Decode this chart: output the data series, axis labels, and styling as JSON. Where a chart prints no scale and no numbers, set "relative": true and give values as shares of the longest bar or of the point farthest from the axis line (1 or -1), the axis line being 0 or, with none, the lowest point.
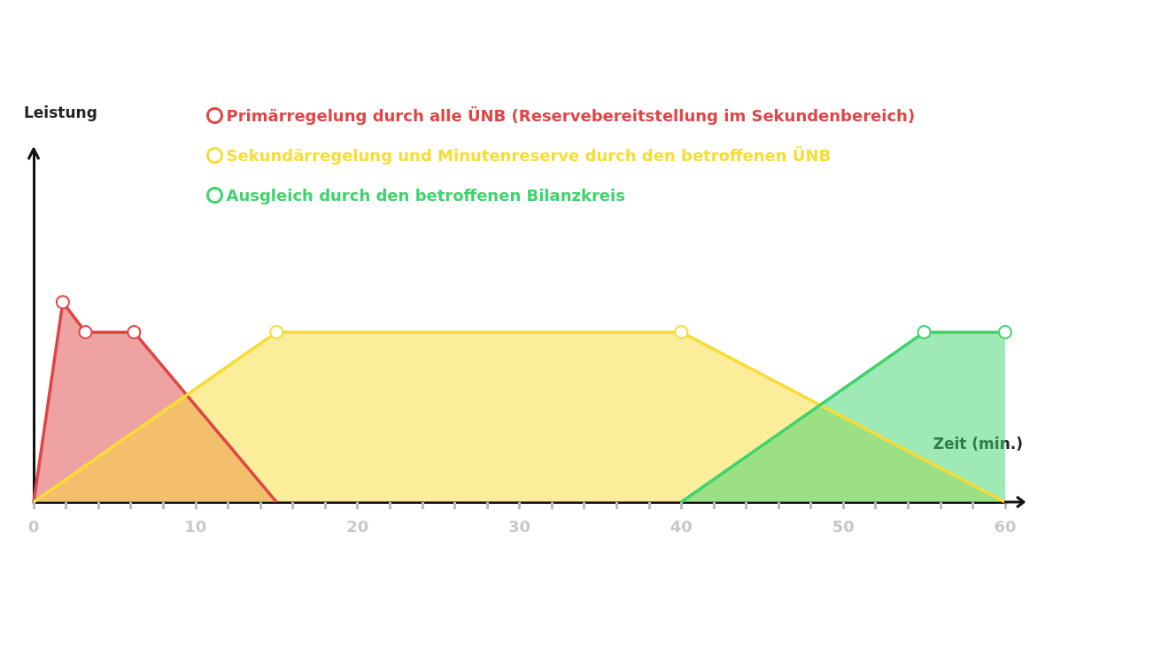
{
  "chart_data": {
    "type": "area",
    "relative": true,
    "xlabel": "Zeit (min.)",
    "annotations": [
      "Leistung"
    ],
    "xlim": [
      0,
      60
    ],
    "xticks": [
      0,
      10,
      20,
      30,
      40,
      50,
      60
    ],
    "legend": "top",
    "marker": "circle",
    "grid": false,
    "series": [
      {
        "name": "Primärregelung durch alle ÜNB (Reservebereitstellung im Sekundenbereich)",
        "color": "#e04545",
        "x": [
          0,
          1.8,
          3.2,
          6.2,
          15
        ],
        "values": [
          0,
          1,
          0.85,
          0.85,
          0
        ]
      },
      {
        "name": "Sekundärregelung und Minutenreserve durch den betroffenen ÜNB",
        "color": "#f8dc35",
        "x": [
          0,
          15,
          40,
          60
        ],
        "values": [
          0,
          0.85,
          0.85,
          0
        ]
      },
      {
        "name": "Ausgleich durch den betroffenen Bilanzkreis",
        "color": "#3ed36b",
        "x": [
          40,
          55,
          60
        ],
        "values": [
          0,
          0.85,
          0.85
        ]
      }
    ]
  }
}
